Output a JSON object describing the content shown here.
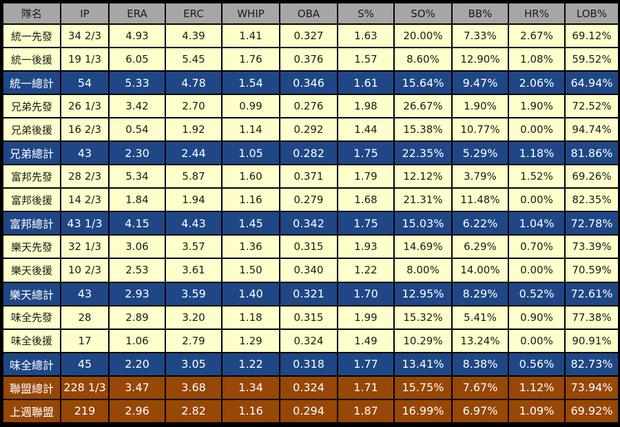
{
  "table": {
    "headers": [
      "隊名",
      "IP",
      "ERA",
      "ERC",
      "WHIP",
      "OBA",
      "S%",
      "SO%",
      "BB%",
      "HR%",
      "LOB%"
    ],
    "rows": [
      {
        "kind": "sub",
        "cells": [
          "統一先發",
          "34 2/3",
          "4.93",
          "4.39",
          "1.41",
          "0.327",
          "1.63",
          "20.00%",
          "7.33%",
          "2.67%",
          "69.12%"
        ]
      },
      {
        "kind": "sub",
        "cells": [
          "統一後援",
          "19 1/3",
          "6.05",
          "5.45",
          "1.76",
          "0.376",
          "1.57",
          "8.60%",
          "12.90%",
          "1.08%",
          "59.52%"
        ]
      },
      {
        "kind": "team",
        "cells": [
          "統一總計",
          "54",
          "5.33",
          "4.78",
          "1.54",
          "0.346",
          "1.61",
          "15.64%",
          "9.47%",
          "2.06%",
          "64.94%"
        ]
      },
      {
        "kind": "sub",
        "cells": [
          "兄弟先發",
          "26 1/3",
          "3.42",
          "2.70",
          "0.99",
          "0.276",
          "1.98",
          "26.67%",
          "1.90%",
          "1.90%",
          "72.52%"
        ]
      },
      {
        "kind": "sub",
        "cells": [
          "兄弟後援",
          "16 2/3",
          "0.54",
          "1.92",
          "1.14",
          "0.292",
          "1.44",
          "15.38%",
          "10.77%",
          "0.00%",
          "94.74%"
        ]
      },
      {
        "kind": "team",
        "cells": [
          "兄弟總計",
          "43",
          "2.30",
          "2.44",
          "1.05",
          "0.282",
          "1.75",
          "22.35%",
          "5.29%",
          "1.18%",
          "81.86%"
        ]
      },
      {
        "kind": "sub",
        "cells": [
          "富邦先發",
          "28 2/3",
          "5.34",
          "5.87",
          "1.60",
          "0.371",
          "1.79",
          "12.12%",
          "3.79%",
          "1.52%",
          "69.26%"
        ]
      },
      {
        "kind": "sub",
        "cells": [
          "富邦後援",
          "14 2/3",
          "1.84",
          "1.94",
          "1.16",
          "0.279",
          "1.68",
          "21.31%",
          "11.48%",
          "0.00%",
          "82.35%"
        ]
      },
      {
        "kind": "team",
        "cells": [
          "富邦總計",
          "43 1/3",
          "4.15",
          "4.43",
          "1.45",
          "0.342",
          "1.75",
          "15.03%",
          "6.22%",
          "1.04%",
          "72.78%"
        ]
      },
      {
        "kind": "sub",
        "cells": [
          "樂天先發",
          "32 1/3",
          "3.06",
          "3.57",
          "1.36",
          "0.315",
          "1.93",
          "14.69%",
          "6.29%",
          "0.70%",
          "73.39%"
        ]
      },
      {
        "kind": "sub",
        "cells": [
          "樂天後援",
          "10 2/3",
          "2.53",
          "3.61",
          "1.50",
          "0.340",
          "1.22",
          "8.00%",
          "14.00%",
          "0.00%",
          "70.59%"
        ]
      },
      {
        "kind": "team",
        "cells": [
          "樂天總計",
          "43",
          "2.93",
          "3.59",
          "1.40",
          "0.321",
          "1.70",
          "12.95%",
          "8.29%",
          "0.52%",
          "72.61%"
        ]
      },
      {
        "kind": "sub",
        "cells": [
          "味全先發",
          "28",
          "2.89",
          "3.20",
          "1.18",
          "0.315",
          "1.99",
          "15.32%",
          "5.41%",
          "0.90%",
          "77.38%"
        ]
      },
      {
        "kind": "sub",
        "cells": [
          "味全後援",
          "17",
          "1.06",
          "2.79",
          "1.29",
          "0.324",
          "1.49",
          "10.29%",
          "13.24%",
          "0.00%",
          "90.91%"
        ]
      },
      {
        "kind": "team",
        "cells": [
          "味全總計",
          "45",
          "2.20",
          "3.05",
          "1.22",
          "0.318",
          "1.77",
          "13.41%",
          "8.38%",
          "0.56%",
          "82.73%"
        ]
      },
      {
        "kind": "league",
        "cells": [
          "聯盟總計",
          "228 1/3",
          "3.47",
          "3.68",
          "1.34",
          "0.324",
          "1.71",
          "15.75%",
          "7.67%",
          "1.12%",
          "73.94%"
        ]
      },
      {
        "kind": "league",
        "cells": [
          "上週聯盟",
          "219",
          "2.96",
          "2.82",
          "1.16",
          "0.294",
          "1.87",
          "16.99%",
          "6.97%",
          "1.09%",
          "69.92%"
        ]
      }
    ]
  },
  "colors": {
    "header_bg": "#a6a6a6",
    "sub_row_bg": "#ffffcc",
    "team_total_bg": "#1f4786",
    "league_bg": "#974706"
  }
}
